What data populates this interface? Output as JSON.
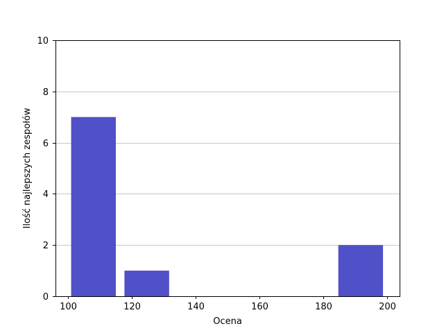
{
  "chart_data": {
    "type": "bar",
    "title": "",
    "xlabel": "Ocena",
    "ylabel": "Ilość najlepszych zespołów",
    "xlim": [
      96.1,
      203.9
    ],
    "ylim": [
      0,
      10
    ],
    "xticks": [
      100,
      120,
      140,
      160,
      180,
      200
    ],
    "yticks": [
      0,
      2,
      4,
      6,
      8,
      10
    ],
    "grid": {
      "y": true,
      "x": false
    },
    "legend": "none",
    "bars": [
      {
        "x_start": 101.0,
        "x_end": 115.0,
        "value": 7
      },
      {
        "x_start": 117.7,
        "x_end": 131.7,
        "value": 1
      },
      {
        "x_start": 151.2,
        "x_end": 165.2,
        "value": 0
      },
      {
        "x_start": 168.0,
        "x_end": 182.0,
        "value": 0
      },
      {
        "x_start": 184.7,
        "x_end": 198.7,
        "value": 2
      }
    ],
    "colors": {
      "bar": "#5050c8",
      "grid": "#c8c8c8",
      "axis": "#000000"
    }
  }
}
